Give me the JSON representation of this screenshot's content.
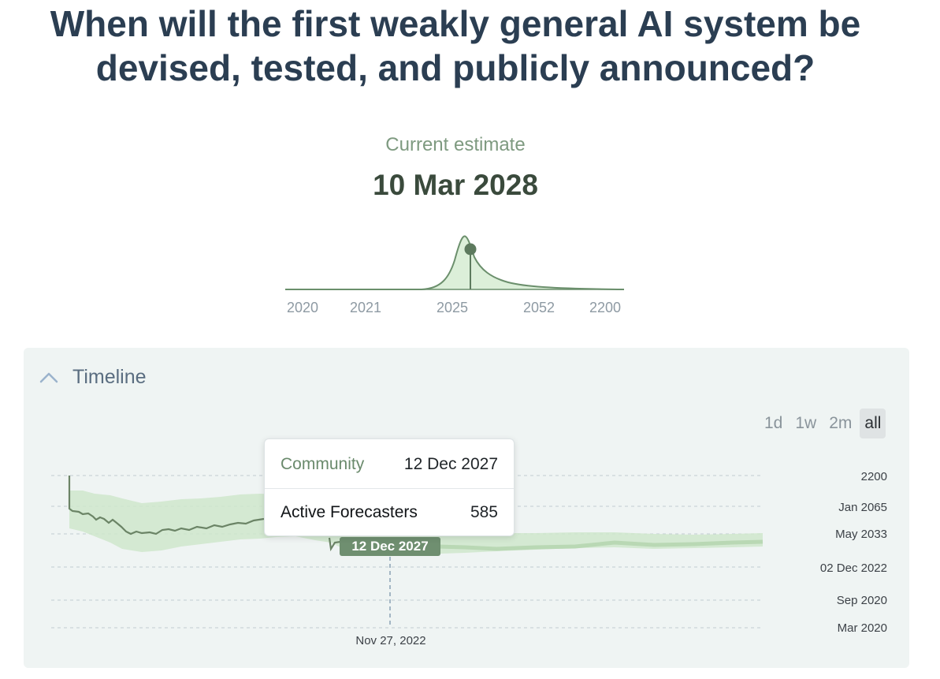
{
  "question": {
    "title": "When will the first weakly general AI system be devised, tested, and publicly announced?"
  },
  "estimate": {
    "label": "Current estimate",
    "value": "10 Mar 2028"
  },
  "distribution": {
    "tick_labels": [
      "2020",
      "2021",
      "2025",
      "2052",
      "2200"
    ],
    "marker_label": "2028-03-10"
  },
  "timeline": {
    "label": "Timeline",
    "ranges": [
      "1d",
      "1w",
      "2m",
      "all"
    ],
    "selected_range": "all",
    "y_labels": [
      "2200",
      "Jan 2065",
      "May 2033",
      "02 Dec 2022",
      "Sep 2020",
      "Mar 2020"
    ],
    "x_label": "Nov 27, 2022",
    "marker_label": "12 Dec 2027",
    "tooltip": {
      "community_label": "Community",
      "community_value": "12 Dec 2027",
      "forecasters_label": "Active Forecasters",
      "forecasters_value": "585"
    }
  },
  "colors": {
    "title": "#2b3e52",
    "accent_green": "#6b8f6c",
    "band_green": "#cfe6cb",
    "marker_bg": "#6f8f70"
  }
}
